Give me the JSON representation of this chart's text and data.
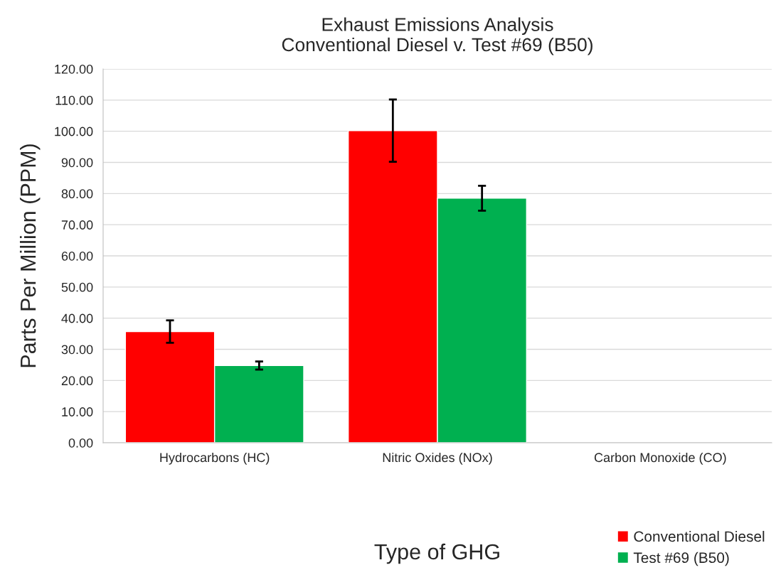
{
  "chart_data": {
    "type": "bar",
    "title": "Exhaust Emissions Analysis\nConventional Diesel v. Test #69 (B50)",
    "xlabel": "Type of GHG",
    "ylabel": "Parts Per Million (PPM)",
    "categories": [
      "Hydrocarbons (HC)",
      "Nitric Oxides (NOx)",
      "Carbon Monoxide (CO)"
    ],
    "series": [
      {
        "name": "Conventional Diesel",
        "color": "#ff0000",
        "values": [
          35.7,
          100.2,
          null
        ],
        "errors": [
          3.6,
          10.0,
          null
        ]
      },
      {
        "name": "Test #69 (B50)",
        "color": "#00b050",
        "values": [
          24.8,
          78.5,
          null
        ],
        "errors": [
          1.3,
          4.0,
          null
        ]
      }
    ],
    "ylim": [
      0,
      120
    ],
    "yticks": [
      {
        "value": 0,
        "label": "0.00"
      },
      {
        "value": 10,
        "label": "10.00"
      },
      {
        "value": 20,
        "label": "20.00"
      },
      {
        "value": 30,
        "label": "30.00"
      },
      {
        "value": 40,
        "label": "40.00"
      },
      {
        "value": 50,
        "label": "50.00"
      },
      {
        "value": 60,
        "label": "60.00"
      },
      {
        "value": 70,
        "label": "70.00"
      },
      {
        "value": 80,
        "label": "80.00"
      },
      {
        "value": 90,
        "label": "90.00"
      },
      {
        "value": 100,
        "label": "100.00"
      },
      {
        "value": 110,
        "label": "110.00"
      },
      {
        "value": 120,
        "label": "120.00"
      }
    ],
    "grid": "y",
    "legend": "bottom right"
  }
}
